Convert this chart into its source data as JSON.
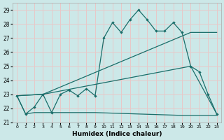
{
  "xlabel": "Humidex (Indice chaleur)",
  "bg_color": "#cce8e8",
  "grid_color": "#e8c8c8",
  "line_color": "#1a6e6a",
  "xlim": [
    -0.5,
    23.5
  ],
  "ylim": [
    21,
    29.5
  ],
  "yticks": [
    21,
    22,
    23,
    24,
    25,
    26,
    27,
    28,
    29
  ],
  "xticks": [
    0,
    1,
    2,
    3,
    4,
    5,
    6,
    7,
    8,
    9,
    10,
    11,
    12,
    13,
    14,
    15,
    16,
    17,
    18,
    19,
    20,
    21,
    22,
    23
  ],
  "line1_x": [
    0,
    1,
    2,
    3,
    4,
    5,
    6,
    7,
    8,
    9,
    10,
    11,
    12,
    13,
    14,
    15,
    16,
    17,
    18,
    19,
    20,
    21,
    22,
    23
  ],
  "line1_y": [
    22.9,
    21.6,
    22.1,
    23.0,
    21.7,
    23.0,
    23.3,
    22.9,
    23.4,
    22.9,
    27.0,
    28.1,
    27.4,
    28.3,
    29.0,
    28.3,
    27.5,
    27.5,
    28.1,
    27.4,
    25.0,
    24.6,
    23.0,
    21.6
  ],
  "line2_x": [
    0,
    3,
    20,
    23
  ],
  "line2_y": [
    22.9,
    23.0,
    27.4,
    27.4
  ],
  "line3_x": [
    0,
    3,
    20,
    23
  ],
  "line3_y": [
    22.9,
    23.0,
    25.0,
    21.6
  ],
  "line4_x": [
    0,
    1,
    2,
    3,
    9,
    19,
    20,
    21,
    22,
    23
  ],
  "line4_y": [
    22.9,
    21.6,
    21.7,
    21.7,
    21.7,
    21.5,
    21.5,
    21.5,
    21.5,
    21.5
  ]
}
